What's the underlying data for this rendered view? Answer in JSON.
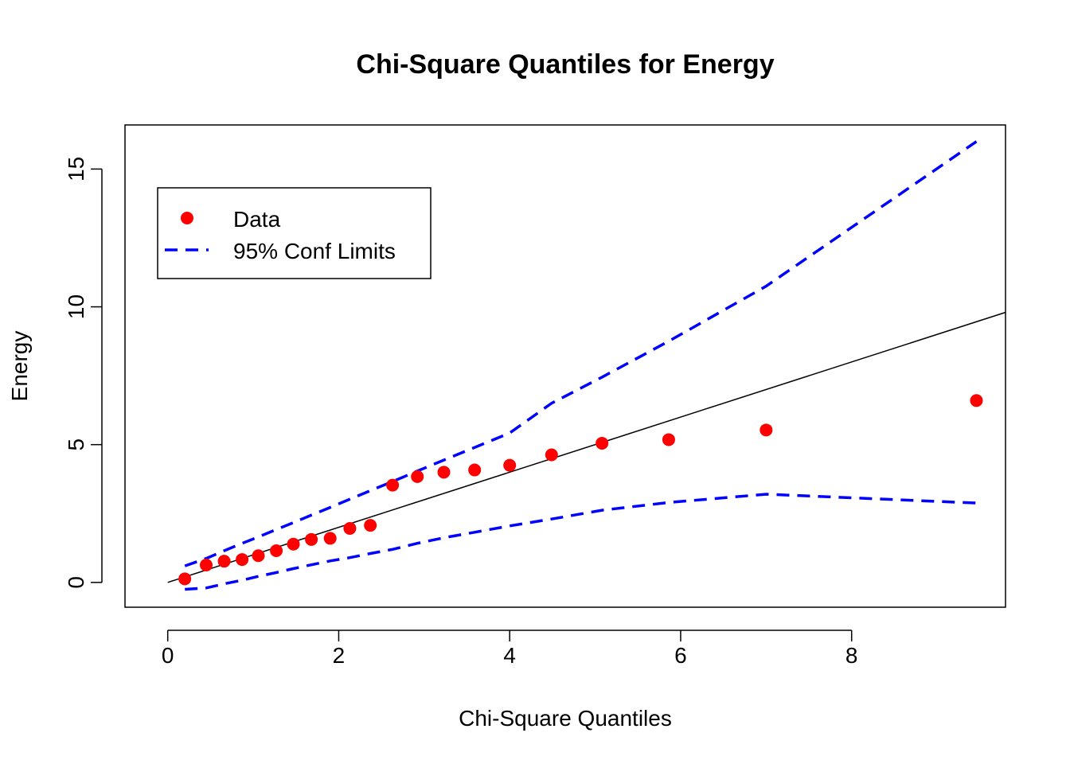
{
  "chart_data": {
    "type": "scatter",
    "title": "Chi-Square Quantiles for Energy",
    "xlabel": "Chi-Square Quantiles",
    "ylabel": "Energy",
    "xlim": [
      -0.5,
      9.8
    ],
    "ylim": [
      -0.9,
      16.6
    ],
    "xticks": [
      0,
      2,
      4,
      6,
      8
    ],
    "yticks": [
      0,
      5,
      10,
      15
    ],
    "grid": false,
    "legend_position": "top-left",
    "reference_line": {
      "slope": 1,
      "intercept": 0,
      "color": "#000000"
    },
    "series": [
      {
        "name": "Data",
        "kind": "points",
        "color": "#ff0000",
        "x": [
          0.2,
          0.45,
          0.66,
          0.87,
          1.06,
          1.27,
          1.47,
          1.68,
          1.9,
          2.13,
          2.37,
          2.63,
          2.92,
          3.23,
          3.59,
          4.0,
          4.49,
          5.08,
          5.86,
          7.0,
          9.46
        ],
        "y": [
          0.13,
          0.63,
          0.77,
          0.83,
          0.97,
          1.15,
          1.39,
          1.56,
          1.6,
          1.96,
          2.07,
          3.53,
          3.84,
          4.0,
          4.08,
          4.25,
          4.63,
          5.05,
          5.18,
          5.53,
          6.6
        ]
      },
      {
        "name": "95% Conf Limits",
        "kind": "dashed-line",
        "color": "#0000ff",
        "x": [
          0.2,
          0.45,
          0.66,
          0.87,
          1.06,
          1.27,
          1.47,
          1.68,
          1.9,
          2.13,
          2.37,
          2.63,
          2.92,
          3.23,
          3.59,
          4.0,
          4.49,
          5.08,
          5.86,
          7.0,
          9.46
        ],
        "y": [
          0.6,
          0.87,
          1.15,
          1.42,
          1.65,
          1.92,
          2.17,
          2.44,
          2.72,
          3.02,
          3.33,
          3.66,
          4.04,
          4.44,
          4.9,
          5.42,
          6.5,
          7.45,
          8.75,
          10.75,
          16.0
        ]
      },
      {
        "kind": "dashed-line",
        "color": "#0000ff",
        "x": [
          0.2,
          0.45,
          0.66,
          0.87,
          1.06,
          1.27,
          1.47,
          1.68,
          1.9,
          2.13,
          2.37,
          2.63,
          2.92,
          3.23,
          3.59,
          4.0,
          4.49,
          5.08,
          5.86,
          7.0,
          9.46
        ],
        "y": [
          -0.25,
          -0.2,
          -0.05,
          0.08,
          0.22,
          0.36,
          0.5,
          0.64,
          0.78,
          0.9,
          1.05,
          1.2,
          1.42,
          1.62,
          1.82,
          2.05,
          2.3,
          2.62,
          2.9,
          3.2,
          2.88
        ]
      }
    ]
  }
}
